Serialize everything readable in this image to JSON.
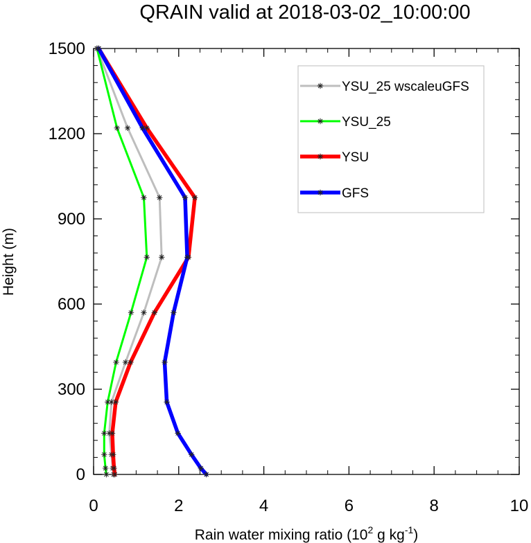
{
  "chart_data": {
    "type": "line",
    "title": "QRAIN valid at 2018-03-02_10:00:00",
    "xlabel": {
      "main": "Rain water mixing ratio (10",
      "sup1": "2",
      "mid": " g kg",
      "sup2": "-1",
      "end": ")"
    },
    "ylabel": "Height (m)",
    "xlim": [
      0,
      10
    ],
    "ylim": [
      0,
      1500
    ],
    "xticks": [
      0,
      2,
      4,
      6,
      8,
      10
    ],
    "xtick_labels": [
      "0",
      "2",
      "4",
      "6",
      "8",
      "10"
    ],
    "yticks": [
      0,
      300,
      600,
      900,
      1200,
      1500
    ],
    "ytick_labels": [
      "0",
      "300",
      "600",
      "900",
      "1200",
      "1500"
    ],
    "grid": false,
    "legend_position": "top-right",
    "series": [
      {
        "name": "YSU_25 wscaleuGFS",
        "color": "#bebebe",
        "points": [
          [
            0.47,
            0
          ],
          [
            0.45,
            22
          ],
          [
            0.42,
            70
          ],
          [
            0.37,
            145
          ],
          [
            0.42,
            255
          ],
          [
            0.75,
            395
          ],
          [
            1.18,
            570
          ],
          [
            1.6,
            765
          ],
          [
            1.55,
            975
          ],
          [
            0.8,
            1220
          ],
          [
            0.08,
            1500
          ]
        ]
      },
      {
        "name": "YSU_25",
        "color": "#00ff00",
        "points": [
          [
            0.3,
            0
          ],
          [
            0.28,
            22
          ],
          [
            0.25,
            70
          ],
          [
            0.25,
            145
          ],
          [
            0.33,
            255
          ],
          [
            0.53,
            395
          ],
          [
            0.88,
            570
          ],
          [
            1.25,
            765
          ],
          [
            1.18,
            975
          ],
          [
            0.55,
            1220
          ],
          [
            0.08,
            1500
          ]
        ]
      },
      {
        "name": "YSU",
        "color": "#ff0000",
        "points": [
          [
            0.5,
            0
          ],
          [
            0.48,
            22
          ],
          [
            0.46,
            70
          ],
          [
            0.44,
            145
          ],
          [
            0.52,
            255
          ],
          [
            0.87,
            395
          ],
          [
            1.43,
            570
          ],
          [
            2.23,
            765
          ],
          [
            2.38,
            975
          ],
          [
            1.25,
            1220
          ],
          [
            0.12,
            1500
          ]
        ]
      },
      {
        "name": "GFS",
        "color": "#0000ff",
        "points": [
          [
            2.65,
            0
          ],
          [
            2.52,
            22
          ],
          [
            2.3,
            70
          ],
          [
            1.98,
            145
          ],
          [
            1.72,
            255
          ],
          [
            1.67,
            395
          ],
          [
            1.88,
            570
          ],
          [
            2.2,
            765
          ],
          [
            2.15,
            975
          ],
          [
            1.15,
            1220
          ],
          [
            0.12,
            1500
          ]
        ]
      }
    ]
  }
}
